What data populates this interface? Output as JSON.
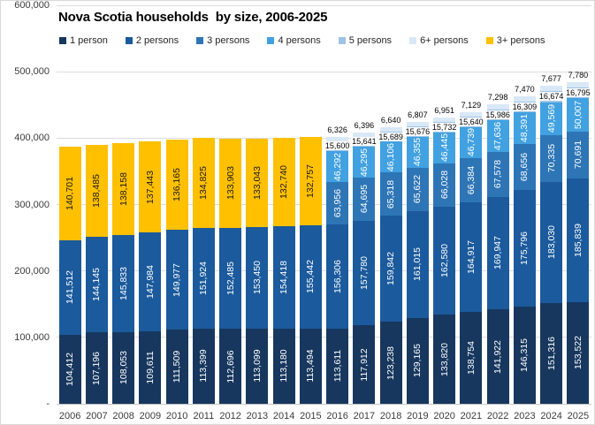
{
  "header": {
    "title": "Nova Scotia households  by size, 2006-2025"
  },
  "chart_data": {
    "type": "bar",
    "stacked": true,
    "title": "Nova Scotia households  by size, 2006-2025",
    "legend_position": "top",
    "grid": true,
    "categories": [
      "2006",
      "2007",
      "2008",
      "2009",
      "2010",
      "2011",
      "2012",
      "2013",
      "2014",
      "2015",
      "2016",
      "2017",
      "2018",
      "2019",
      "2020",
      "2021",
      "2022",
      "2023",
      "2024",
      "2025"
    ],
    "series": [
      {
        "name": "1 person",
        "color": "#17375E",
        "values": [
          104412,
          107196,
          108053,
          109611,
          111509,
          113399,
          112696,
          113099,
          113180,
          113494,
          113611,
          117912,
          123238,
          129165,
          133820,
          138754,
          141922,
          146315,
          151316,
          153522
        ]
      },
      {
        "name": "2 persons",
        "color": "#1B5A9C",
        "values": [
          141512,
          144145,
          145833,
          147984,
          149977,
          151924,
          152485,
          153450,
          154418,
          155442,
          156306,
          157780,
          159842,
          161015,
          162580,
          164917,
          169947,
          175796,
          183030,
          185839
        ]
      },
      {
        "name": "3 persons",
        "color": "#2E75B6",
        "values": [
          null,
          null,
          null,
          null,
          null,
          null,
          null,
          null,
          null,
          null,
          63956,
          64695,
          65318,
          65622,
          66028,
          66384,
          67578,
          68656,
          70335,
          70691
        ]
      },
      {
        "name": "4 persons",
        "color": "#41A1E1",
        "values": [
          null,
          null,
          null,
          null,
          null,
          null,
          null,
          null,
          null,
          null,
          46292,
          46295,
          46106,
          46355,
          46445,
          46739,
          47636,
          48391,
          49569,
          50007
        ]
      },
      {
        "name": "5 persons",
        "color": "#9DC3E6",
        "values": [
          null,
          null,
          null,
          null,
          null,
          null,
          null,
          null,
          null,
          null,
          15600,
          15641,
          15689,
          15676,
          15732,
          15640,
          15986,
          16309,
          16674,
          16795
        ]
      },
      {
        "name": "6+ persons",
        "color": "#D9E8F6",
        "values": [
          null,
          null,
          null,
          null,
          null,
          null,
          null,
          null,
          null,
          null,
          6326,
          6396,
          6640,
          6807,
          6951,
          7129,
          7298,
          7470,
          7677,
          7780
        ]
      },
      {
        "name": "3+ persons",
        "color": "#FFC000",
        "values": [
          140701,
          138485,
          138158,
          137443,
          136165,
          134825,
          133903,
          133043,
          132740,
          132757,
          null,
          null,
          null,
          null,
          null,
          null,
          null,
          null,
          null,
          null
        ]
      }
    ],
    "yaxis": {
      "min": 0,
      "max": 600000,
      "tick_step": 100000,
      "tick_labels": [
        "-",
        "100,000",
        "200,000",
        "300,000",
        "400,000",
        "500,000",
        "600,000"
      ]
    }
  }
}
